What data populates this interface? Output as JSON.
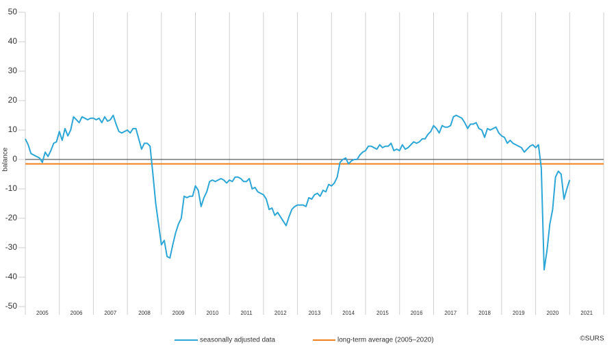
{
  "chart_data": {
    "type": "line",
    "y_label": "balance",
    "credit": "©SURS",
    "x": [
      null,
      null,
      null,
      null,
      null,
      null,
      "2005",
      null,
      null,
      null,
      null,
      null,
      null,
      null,
      null,
      null,
      null,
      null,
      "2006",
      null,
      null,
      null,
      null,
      null,
      null,
      null,
      null,
      null,
      null,
      null,
      "2007",
      null,
      null,
      null,
      null,
      null,
      null,
      null,
      null,
      null,
      null,
      null,
      "2008",
      null,
      null,
      null,
      null,
      null,
      null,
      null,
      null,
      null,
      null,
      null,
      "2009",
      null,
      null,
      null,
      null,
      null,
      null,
      null,
      null,
      null,
      null,
      null,
      "2010",
      null,
      null,
      null,
      null,
      null,
      null,
      null,
      null,
      null,
      null,
      null,
      "2011",
      null,
      null,
      null,
      null,
      null,
      null,
      null,
      null,
      null,
      null,
      null,
      "2012",
      null,
      null,
      null,
      null,
      null,
      null,
      null,
      null,
      null,
      null,
      null,
      "2013",
      null,
      null,
      null,
      null,
      null,
      null,
      null,
      null,
      null,
      null,
      null,
      "2014",
      null,
      null,
      null,
      null,
      null,
      null,
      null,
      null,
      null,
      null,
      null,
      "2015",
      null,
      null,
      null,
      null,
      null,
      null,
      null,
      null,
      null,
      null,
      null,
      "2016",
      null,
      null,
      null,
      null,
      null,
      null,
      null,
      null,
      null,
      null,
      null,
      "2017",
      null,
      null,
      null,
      null,
      null,
      null,
      null,
      null,
      null,
      null,
      null,
      "2018",
      null,
      null,
      null,
      null,
      null,
      null,
      null,
      null,
      null,
      null,
      null,
      "2019",
      null,
      null,
      null,
      null,
      null,
      null,
      null,
      null,
      null,
      null,
      null,
      "2020",
      null,
      null,
      null,
      null,
      null,
      null,
      null,
      null,
      null,
      null,
      null,
      "2021",
      null,
      null,
      null,
      null,
      null
    ],
    "series": [
      {
        "name": "seasonally adjusted data",
        "color": "#2ba6d6",
        "values": [
          7,
          5,
          2,
          1.5,
          1,
          0.5,
          -1,
          2.5,
          1,
          3,
          5.5,
          6,
          9.5,
          6.5,
          10.5,
          8,
          10,
          14.5,
          13.5,
          12.5,
          14.5,
          14,
          13.5,
          14,
          14,
          13.5,
          14,
          12.5,
          14.5,
          13,
          13.5,
          15,
          12,
          9.5,
          9,
          9.5,
          10,
          9,
          10.5,
          10.5,
          7,
          3.5,
          5.5,
          5.5,
          4.5,
          -5,
          -15,
          -22,
          -29,
          -27.5,
          -33,
          -33.5,
          -29,
          -25,
          -22,
          -20,
          -12.5,
          -13,
          -12.5,
          -12.5,
          -9,
          -10.5,
          -16,
          -13,
          -11,
          -7.5,
          -7,
          -7.5,
          -7,
          -6.5,
          -7,
          -8,
          -7,
          -7.5,
          -6,
          -6,
          -6.5,
          -7.5,
          -7.5,
          -6.5,
          -10,
          -9.5,
          -11,
          -11.5,
          -12,
          -13.5,
          -17,
          -16.5,
          -19,
          -18,
          -19.5,
          -21,
          -22.5,
          -19.5,
          -17,
          -16,
          -15.5,
          -15.5,
          -15.5,
          -16,
          -13,
          -13.5,
          -12,
          -11.5,
          -12.5,
          -10.5,
          -11,
          -8.5,
          -9,
          -8,
          -6,
          -1,
          0,
          0.5,
          -1.5,
          -0.5,
          0,
          0,
          1.5,
          2.5,
          3,
          4.5,
          4.5,
          4,
          3.5,
          5,
          4,
          4.5,
          4.5,
          5.5,
          3,
          3.5,
          3,
          5,
          3.5,
          4,
          5,
          6,
          5.5,
          6,
          7,
          7,
          8.5,
          9.5,
          11.5,
          10.5,
          9,
          11.5,
          11,
          11,
          11.5,
          14.5,
          15,
          14.5,
          14,
          12.5,
          10.5,
          12,
          12,
          12.5,
          10.5,
          10,
          7.5,
          10.5,
          10,
          10.5,
          11,
          9,
          8,
          7.5,
          5.5,
          6.5,
          5.5,
          5,
          4.5,
          4,
          2.5,
          3.5,
          4.5,
          5,
          4,
          5,
          -3,
          -37.5,
          -31,
          -22,
          -17,
          -6,
          -4,
          -5,
          -13.5,
          -10,
          -7,
          null,
          null,
          null,
          null,
          null,
          null,
          null,
          null,
          null,
          null,
          null
        ]
      }
    ],
    "reference_line": {
      "name": "long-term average (2005–2020)",
      "value": -1.5,
      "color": "#f07f1a"
    },
    "zero_line_color": "#333333",
    "ylim": [
      -50,
      50
    ],
    "yticks": [
      -50,
      -40,
      -30,
      -20,
      -10,
      0,
      10,
      20,
      30,
      40,
      50
    ]
  }
}
